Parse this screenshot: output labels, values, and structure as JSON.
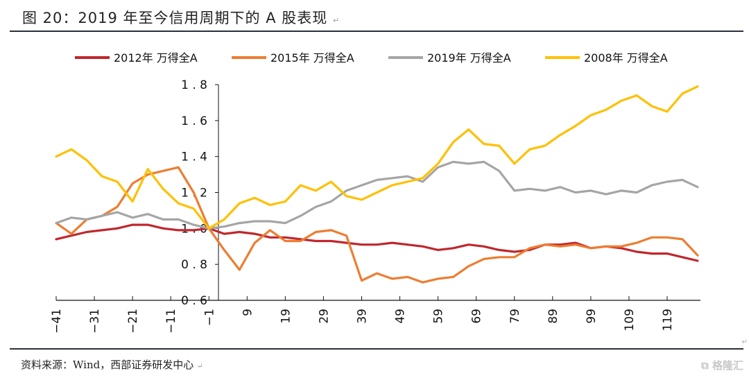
{
  "document": {
    "title": "图 20：2019 年至今信用周期下的 A 股表现",
    "source": "资料来源：Wind，西部证券研发中心",
    "watermark": "格隆汇",
    "paragraph_mark": "↵"
  },
  "chart_data": {
    "type": "line",
    "title": "图 20：2019 年至今信用周期下的 A 股表现",
    "xlabel": "",
    "ylabel": "",
    "ylim": [
      0.6,
      1.8
    ],
    "xlim": [
      -41,
      129
    ],
    "yticks": [
      "0.6",
      "0.8",
      "1.0",
      "1.2",
      "1.4",
      "1.6",
      "1.8"
    ],
    "yticks_values": [
      0.6,
      0.8,
      1.0,
      1.2,
      1.4,
      1.6,
      1.8
    ],
    "xticks": [
      "-41",
      "-31",
      "-21",
      "-11",
      "-1",
      "9",
      "19",
      "29",
      "39",
      "49",
      "59",
      "69",
      "79",
      "89",
      "99",
      "109",
      "119"
    ],
    "xticks_values": [
      -41,
      -31,
      -21,
      -11,
      -1,
      9,
      19,
      29,
      39,
      49,
      59,
      69,
      79,
      89,
      99,
      109,
      119
    ],
    "grid": false,
    "legend": "top",
    "x": [
      -41,
      -37,
      -33,
      -29,
      -25,
      -21,
      -17,
      -13,
      -9,
      -5,
      -1,
      3,
      7,
      11,
      15,
      19,
      23,
      27,
      31,
      35,
      39,
      43,
      47,
      51,
      55,
      59,
      63,
      67,
      71,
      75,
      79,
      83,
      87,
      91,
      95,
      99,
      103,
      107,
      111,
      115,
      119,
      123,
      127
    ],
    "series": [
      {
        "name": "2012年 万得全A",
        "color": "#c0272d",
        "values": [
          0.94,
          0.96,
          0.98,
          0.99,
          1.0,
          1.02,
          1.02,
          1.0,
          0.99,
          0.99,
          1.0,
          0.97,
          0.98,
          0.97,
          0.95,
          0.95,
          0.94,
          0.93,
          0.93,
          0.92,
          0.91,
          0.91,
          0.92,
          0.91,
          0.9,
          0.88,
          0.89,
          0.91,
          0.9,
          0.88,
          0.87,
          0.88,
          0.91,
          0.91,
          0.92,
          0.89,
          0.9,
          0.89,
          0.87,
          0.86,
          0.86,
          0.84,
          0.82
        ]
      },
      {
        "name": "2015年 万得全A",
        "color": "#ed7d31",
        "values": [
          1.03,
          0.97,
          1.05,
          1.07,
          1.12,
          1.25,
          1.3,
          1.32,
          1.34,
          1.2,
          1.0,
          0.88,
          0.77,
          0.92,
          0.99,
          0.93,
          0.93,
          0.98,
          0.99,
          0.96,
          0.71,
          0.75,
          0.72,
          0.73,
          0.7,
          0.72,
          0.73,
          0.79,
          0.83,
          0.84,
          0.84,
          0.89,
          0.91,
          0.9,
          0.91,
          0.89,
          0.9,
          0.9,
          0.92,
          0.95,
          0.95,
          0.94,
          0.85
        ]
      },
      {
        "name": "2019年 万得全A",
        "color": "#a5a5a5",
        "values": [
          1.03,
          1.06,
          1.05,
          1.07,
          1.09,
          1.06,
          1.08,
          1.05,
          1.05,
          1.02,
          1.0,
          1.01,
          1.03,
          1.04,
          1.04,
          1.03,
          1.07,
          1.12,
          1.15,
          1.21,
          1.24,
          1.27,
          1.28,
          1.29,
          1.26,
          1.34,
          1.37,
          1.36,
          1.37,
          1.32,
          1.21,
          1.22,
          1.21,
          1.23,
          1.2,
          1.21,
          1.19,
          1.21,
          1.2,
          1.24,
          1.26,
          1.27,
          1.23
        ]
      },
      {
        "name": "2008年 万得全A",
        "color": "#ffc000",
        "values": [
          1.4,
          1.44,
          1.38,
          1.29,
          1.26,
          1.15,
          1.33,
          1.22,
          1.14,
          1.11,
          1.0,
          1.05,
          1.14,
          1.17,
          1.13,
          1.15,
          1.24,
          1.21,
          1.26,
          1.18,
          1.16,
          1.2,
          1.24,
          1.26,
          1.28,
          1.36,
          1.48,
          1.55,
          1.47,
          1.46,
          1.36,
          1.44,
          1.46,
          1.52,
          1.57,
          1.63,
          1.66,
          1.71,
          1.74,
          1.68,
          1.65,
          1.75,
          1.79
        ]
      }
    ]
  }
}
